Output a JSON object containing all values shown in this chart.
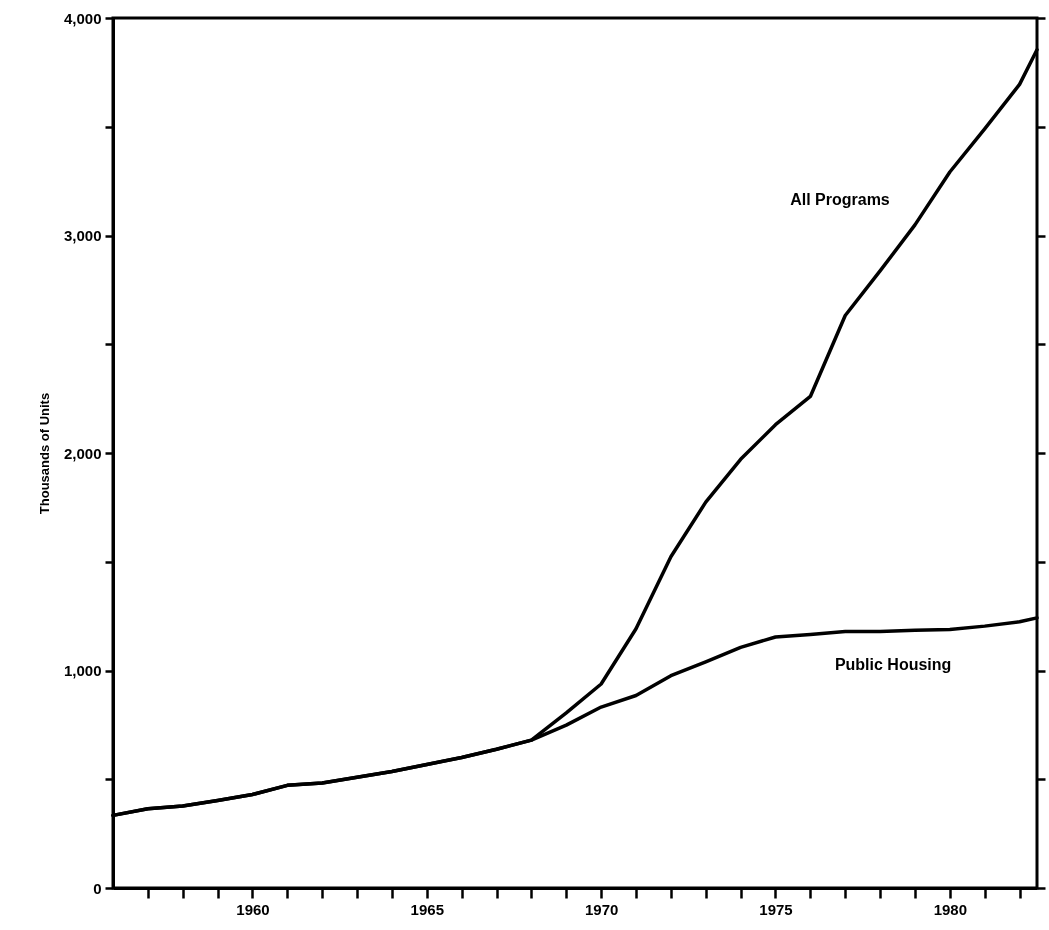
{
  "chart_data": {
    "type": "line",
    "ylabel": "Thousands of Units",
    "x": [
      1956,
      1957,
      1958,
      1959,
      1960,
      1961,
      1962,
      1963,
      1964,
      1965,
      1966,
      1967,
      1968,
      1969,
      1970,
      1971,
      1972,
      1973,
      1974,
      1975,
      1976,
      1977,
      1978,
      1979,
      1980,
      1981,
      1982,
      1982.5
    ],
    "series": [
      {
        "name": "All Programs",
        "color": "#000000",
        "values": [
          334,
          364,
          377,
          402,
          430,
          472,
          483,
          509,
          536,
          568,
          600,
          638,
          680,
          805,
          938,
          1192,
          1523,
          1774,
          1971,
          2130,
          2260,
          2632,
          2837,
          3049,
          3292,
          3490,
          3695,
          3854
        ]
      },
      {
        "name": "Public Housing",
        "color": "#000000",
        "values": [
          334,
          364,
          377,
          402,
          430,
          472,
          483,
          509,
          536,
          568,
          600,
          638,
          680,
          749,
          832,
          885,
          976,
          1040,
          1106,
          1154,
          1166,
          1179,
          1179,
          1185,
          1189,
          1204,
          1224,
          1242
        ]
      }
    ],
    "xlim": [
      1956,
      1982.5
    ],
    "xticks": [
      {
        "value": 1957,
        "label": null
      },
      {
        "value": 1958,
        "label": null
      },
      {
        "value": 1959,
        "label": null
      },
      1960,
      {
        "value": 1961,
        "label": null
      },
      {
        "value": 1962,
        "label": null
      },
      {
        "value": 1963,
        "label": null
      },
      {
        "value": 1964,
        "label": null
      },
      1965,
      {
        "value": 1966,
        "label": null
      },
      {
        "value": 1967,
        "label": null
      },
      {
        "value": 1968,
        "label": null
      },
      {
        "value": 1969,
        "label": null
      },
      1970,
      {
        "value": 1971,
        "label": null
      },
      {
        "value": 1972,
        "label": null
      },
      {
        "value": 1973,
        "label": null
      },
      {
        "value": 1974,
        "label": null
      },
      1975,
      {
        "value": 1976,
        "label": null
      },
      {
        "value": 1977,
        "label": null
      },
      {
        "value": 1978,
        "label": null
      },
      {
        "value": 1979,
        "label": null
      },
      1980,
      {
        "value": 1981,
        "label": null
      },
      {
        "value": 1982,
        "label": null
      }
    ],
    "ylim": [
      0,
      4000
    ],
    "yticks": [
      0,
      {
        "value": 500,
        "label": null
      },
      {
        "value": 1000,
        "label": "1,000"
      },
      {
        "value": 1500,
        "label": null
      },
      {
        "value": 2000,
        "label": "2,000"
      },
      {
        "value": 2500,
        "label": null
      },
      {
        "value": 3000,
        "label": "3,000"
      },
      {
        "value": 3500,
        "label": null
      },
      {
        "value": 4000,
        "label": "4,000"
      }
    ],
    "grid": false,
    "line_style": "solid",
    "marker": "none"
  }
}
